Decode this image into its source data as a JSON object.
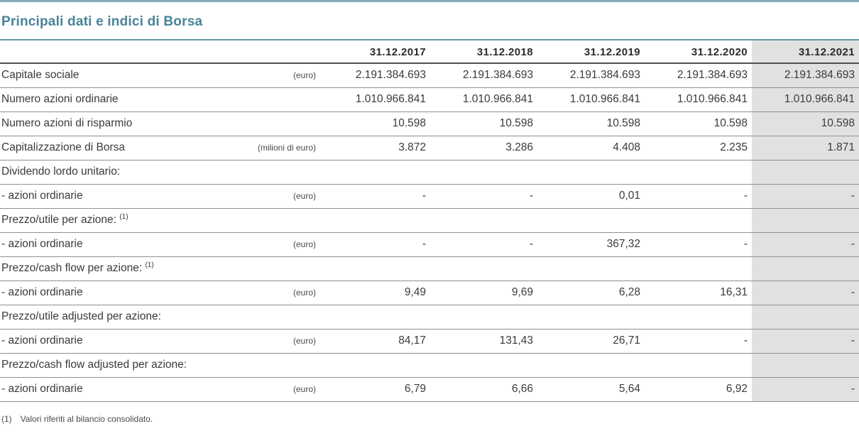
{
  "title": "Principali dati e indici di Borsa",
  "accent_color": "#48839a",
  "highlight_color": "#e1e1e1",
  "table": {
    "columns": [
      "31.12.2017",
      "31.12.2018",
      "31.12.2019",
      "31.12.2020",
      "31.12.2021"
    ],
    "highlighted_column": "31.12.2021",
    "rows": [
      {
        "label": "Capitale sociale",
        "sup": "",
        "unit": "(euro)",
        "values": [
          "2.191.384.693",
          "2.191.384.693",
          "2.191.384.693",
          "2.191.384.693",
          "2.191.384.693"
        ]
      },
      {
        "label": "Numero azioni ordinarie",
        "sup": "",
        "unit": "",
        "values": [
          "1.010.966.841",
          "1.010.966.841",
          "1.010.966.841",
          "1.010.966.841",
          "1.010.966.841"
        ]
      },
      {
        "label": "Numero azioni di risparmio",
        "sup": "",
        "unit": "",
        "values": [
          "10.598",
          "10.598",
          "10.598",
          "10.598",
          "10.598"
        ]
      },
      {
        "label": "Capitalizzazione di Borsa",
        "sup": "",
        "unit": "(milioni di euro)",
        "values": [
          "3.872",
          "3.286",
          "4.408",
          "2.235",
          "1.871"
        ]
      },
      {
        "label": "Dividendo lordo unitario:",
        "sup": "",
        "unit": "",
        "values": [
          "",
          "",
          "",
          "",
          ""
        ]
      },
      {
        "label": "- azioni ordinarie",
        "sup": "",
        "unit": "(euro)",
        "values": [
          "-",
          "-",
          "0,01",
          "-",
          "-"
        ]
      },
      {
        "label": "Prezzo/utile per azione:",
        "sup": "(1)",
        "unit": "",
        "values": [
          "",
          "",
          "",
          "",
          ""
        ]
      },
      {
        "label": "- azioni ordinarie",
        "sup": "",
        "unit": "(euro)",
        "values": [
          "-",
          "-",
          "367,32",
          "-",
          "-"
        ]
      },
      {
        "label": "Prezzo/cash flow per azione:",
        "sup": "(1)",
        "unit": "",
        "values": [
          "",
          "",
          "",
          "",
          ""
        ]
      },
      {
        "label": "- azioni ordinarie",
        "sup": "",
        "unit": "(euro)",
        "values": [
          "9,49",
          "9,69",
          "6,28",
          "16,31",
          "-"
        ]
      },
      {
        "label": "Prezzo/utile adjusted per azione:",
        "sup": "",
        "unit": "",
        "values": [
          "",
          "",
          "",
          "",
          ""
        ]
      },
      {
        "label": "- azioni ordinarie",
        "sup": "",
        "unit": "(euro)",
        "values": [
          "84,17",
          "131,43",
          "26,71",
          "-",
          "-"
        ]
      },
      {
        "label": "Prezzo/cash flow adjusted per azione:",
        "sup": "",
        "unit": "",
        "values": [
          "",
          "",
          "",
          "",
          ""
        ]
      },
      {
        "label": "- azioni ordinarie",
        "sup": "",
        "unit": "(euro)",
        "values": [
          "6,79",
          "6,66",
          "5,64",
          "6,92",
          "-"
        ]
      }
    ]
  },
  "footnote": {
    "marker": "(1)",
    "text": "Valori riferiti al bilancio consolidato."
  }
}
